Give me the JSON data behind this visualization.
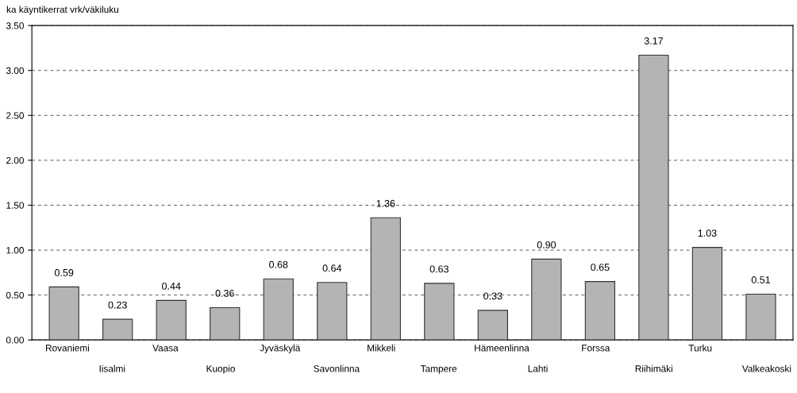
{
  "chart_data": {
    "type": "bar",
    "ylabel": "ka käyntikerrat vrk/väkiluku",
    "categories": [
      "Rovaniemi",
      "Iisalmi",
      "Vaasa",
      "Kuopio",
      "Jyväskylä",
      "Savonlinna",
      "Mikkeli",
      "Tampere",
      "Hämeenlinna",
      "Lahti",
      "Forssa",
      "Riihimäki",
      "Turku",
      "Valkeakoski"
    ],
    "values": [
      0.59,
      0.23,
      0.44,
      0.36,
      0.68,
      0.64,
      1.36,
      0.63,
      0.33,
      0.9,
      0.65,
      3.17,
      1.03,
      0.51
    ],
    "value_labels": [
      "0.59",
      "0.23",
      "0.44",
      "0.36",
      "0.68",
      "0.64",
      "1.36",
      "0.63",
      "0.33",
      "0.90",
      "0.65",
      "3.17",
      "1.03",
      "0.51"
    ],
    "color": "#b4b4b4",
    "ylim": [
      0,
      3.5
    ],
    "yticks": [
      {
        "value": 0,
        "label": "0.00"
      },
      {
        "value": 0.5,
        "label": "0.50"
      },
      {
        "value": 1,
        "label": "1.00"
      },
      {
        "value": 1.5,
        "label": "1.50"
      },
      {
        "value": 2,
        "label": "2.00"
      },
      {
        "value": 2.5,
        "label": "2.50"
      },
      {
        "value": 3,
        "label": "3.00"
      },
      {
        "value": 3.5,
        "label": "3.50"
      }
    ],
    "grid": "y",
    "legend": false
  }
}
